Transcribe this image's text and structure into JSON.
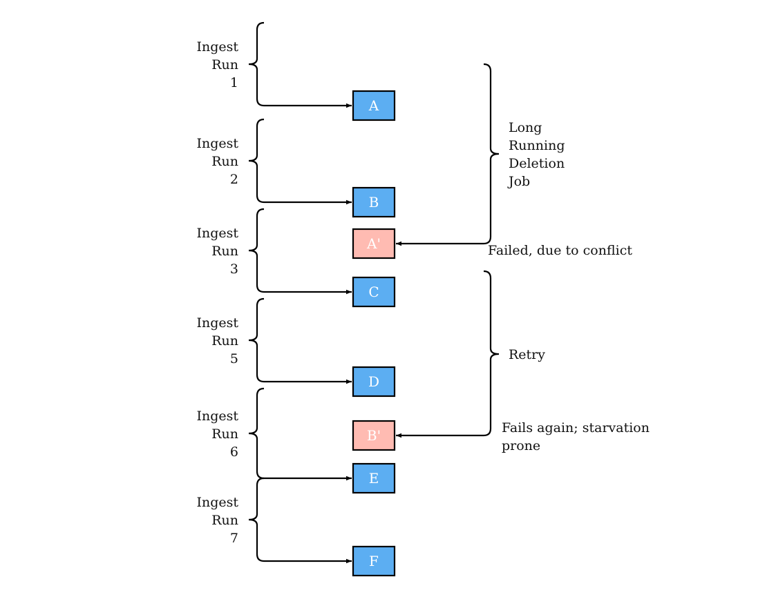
{
  "colors": {
    "normal_box": "#5caef2",
    "failed_box": "#ffbbb2",
    "stroke": "#000000"
  },
  "ingest_runs": [
    {
      "lines": [
        "Ingest",
        "Run",
        "1"
      ],
      "target": "A"
    },
    {
      "lines": [
        "Ingest",
        "Run",
        "2"
      ],
      "target": "B"
    },
    {
      "lines": [
        "Ingest",
        "Run",
        "3"
      ],
      "target": "C"
    },
    {
      "lines": [
        "Ingest",
        "Run",
        "5"
      ],
      "target": "D"
    },
    {
      "lines": [
        "Ingest",
        "Run",
        "6"
      ],
      "target": "E"
    },
    {
      "lines": [
        "Ingest",
        "Run",
        "7"
      ],
      "target": "F"
    }
  ],
  "boxes": [
    {
      "label": "A",
      "status": "normal"
    },
    {
      "label": "B",
      "status": "normal"
    },
    {
      "label": "A'",
      "status": "failed"
    },
    {
      "label": "C",
      "status": "normal"
    },
    {
      "label": "D",
      "status": "normal"
    },
    {
      "label": "B'",
      "status": "failed"
    },
    {
      "label": "E",
      "status": "normal"
    },
    {
      "label": "F",
      "status": "normal"
    }
  ],
  "jobs": [
    {
      "lines": [
        "Long",
        "Running",
        "Deletion",
        "Job"
      ],
      "target": "A'",
      "note_lines": [
        "Failed, due to conflict"
      ]
    },
    {
      "lines": [
        "Retry"
      ],
      "target": "B'",
      "note_lines": [
        "Fails again; starvation",
        "prone"
      ]
    }
  ]
}
